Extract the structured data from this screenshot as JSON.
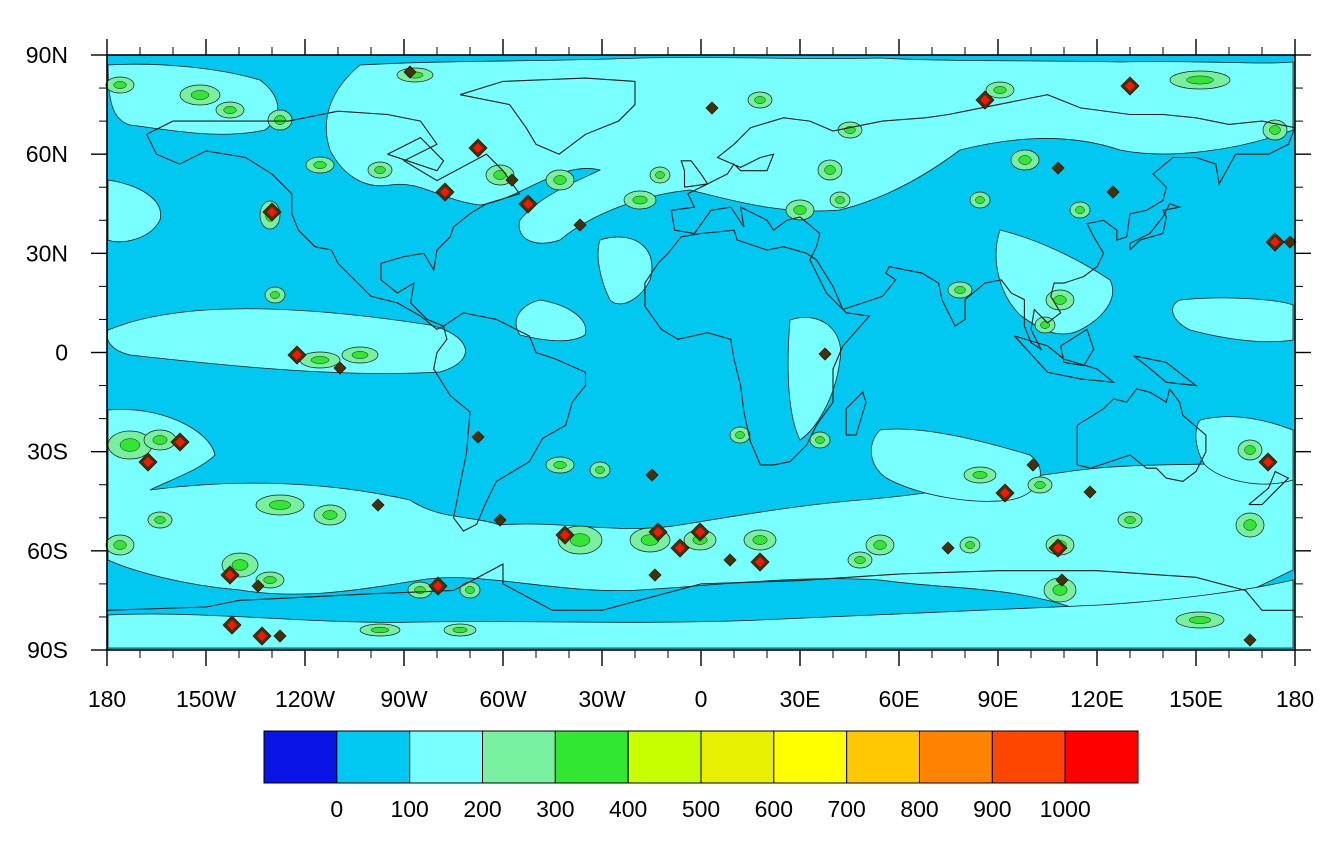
{
  "map": {
    "projection": "cylindrical-equidistant",
    "lon_range": [
      -180,
      180
    ],
    "lat_range": [
      -90,
      90
    ],
    "ocean_fill": "#00c8f0",
    "x_tick_labels": [
      "180",
      "150W",
      "120W",
      "90W",
      "60W",
      "30W",
      "0",
      "30E",
      "60E",
      "90E",
      "120E",
      "150E",
      "180"
    ],
    "y_tick_labels": [
      "90N",
      "60N",
      "30N",
      "0",
      "30S",
      "60S",
      "90S"
    ]
  },
  "colorbar": {
    "colors": [
      "#0a14e6",
      "#00c8f0",
      "#78ffff",
      "#78f0a0",
      "#32e632",
      "#c8ff00",
      "#e6f000",
      "#ffff00",
      "#ffc800",
      "#ff8200",
      "#ff4600",
      "#ff0000"
    ],
    "labels": [
      "0",
      "100",
      "200",
      "300",
      "400",
      "500",
      "600",
      "700",
      "800",
      "900",
      "1000"
    ]
  },
  "regions": {
    "light_bands": [
      {
        "name": "tropical-pacific-band"
      },
      {
        "name": "southern-ocean-band-1"
      },
      {
        "name": "southern-ocean-band-2"
      },
      {
        "name": "southern-ocean-band-3"
      },
      {
        "name": "north-atlantic-band"
      },
      {
        "name": "north-pacific-band"
      },
      {
        "name": "east-africa-band"
      },
      {
        "name": "south-indian-band"
      },
      {
        "name": "west-pacific-band"
      },
      {
        "name": "south-pacific-band"
      }
    ]
  }
}
